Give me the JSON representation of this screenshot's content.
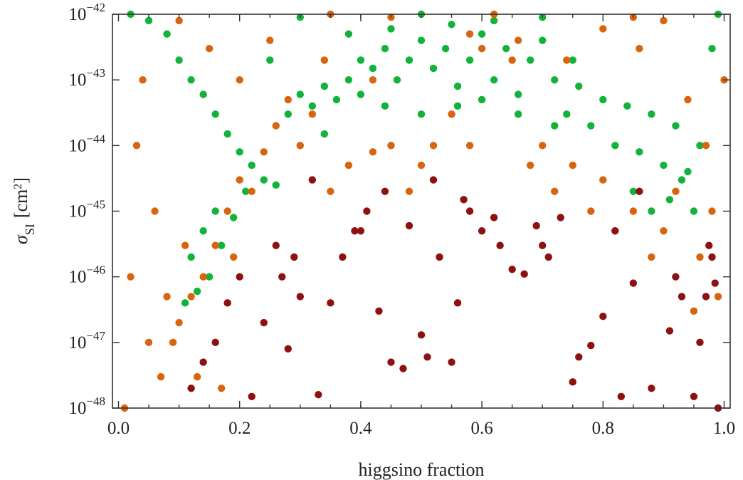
{
  "chart_data": {
    "type": "scatter",
    "title": "",
    "xlabel": "higgsino fraction",
    "ylabel_base": "σ",
    "ylabel_sub": "SI",
    "ylabel_unit": "[cm",
    "ylabel_unit_sup": "2",
    "ylabel_unit_close": "]",
    "x_scale": "linear",
    "y_scale": "log",
    "xlim": [
      -0.01,
      1.01
    ],
    "ylim": [
      1e-48,
      1e-42
    ],
    "grid": false,
    "legend": "none",
    "x_ticks": [
      "0.0",
      "0.2",
      "0.4",
      "0.6",
      "0.8",
      "1.0"
    ],
    "x_tick_values": [
      0.0,
      0.2,
      0.4,
      0.6,
      0.8,
      1.0
    ],
    "y_ticks": [
      {
        "base": "10",
        "exp": "−42",
        "value": 1e-42
      },
      {
        "base": "10",
        "exp": "−43",
        "value": 1e-43
      },
      {
        "base": "10",
        "exp": "−44",
        "value": 1e-44
      },
      {
        "base": "10",
        "exp": "−45",
        "value": 1e-45
      },
      {
        "base": "10",
        "exp": "−46",
        "value": 1e-46
      },
      {
        "base": "10",
        "exp": "−47",
        "value": 1e-47
      },
      {
        "base": "10",
        "exp": "−48",
        "value": 1e-48
      }
    ],
    "series": [
      {
        "color": "#11b33b",
        "points": [
          [
            0.02,
            1e-42
          ],
          [
            0.05,
            8e-43
          ],
          [
            0.08,
            5e-43
          ],
          [
            0.1,
            2e-43
          ],
          [
            0.12,
            1e-43
          ],
          [
            0.14,
            6e-44
          ],
          [
            0.16,
            3e-44
          ],
          [
            0.18,
            1.5e-44
          ],
          [
            0.2,
            8e-45
          ],
          [
            0.22,
            5e-45
          ],
          [
            0.24,
            3e-45
          ],
          [
            0.26,
            2.5e-45
          ],
          [
            0.28,
            3e-44
          ],
          [
            0.3,
            6e-44
          ],
          [
            0.32,
            4e-44
          ],
          [
            0.34,
            8e-44
          ],
          [
            0.36,
            5e-44
          ],
          [
            0.38,
            1e-43
          ],
          [
            0.4,
            2e-43
          ],
          [
            0.42,
            1.5e-43
          ],
          [
            0.44,
            3e-43
          ],
          [
            0.46,
            1e-43
          ],
          [
            0.48,
            2e-43
          ],
          [
            0.5,
            4e-43
          ],
          [
            0.52,
            1.5e-43
          ],
          [
            0.54,
            3e-43
          ],
          [
            0.56,
            8e-44
          ],
          [
            0.58,
            2e-43
          ],
          [
            0.6,
            5e-43
          ],
          [
            0.62,
            1e-43
          ],
          [
            0.64,
            3e-43
          ],
          [
            0.66,
            6e-44
          ],
          [
            0.68,
            2e-43
          ],
          [
            0.7,
            4e-43
          ],
          [
            0.72,
            1e-43
          ],
          [
            0.74,
            3e-44
          ],
          [
            0.76,
            8e-44
          ],
          [
            0.78,
            2e-44
          ],
          [
            0.8,
            5e-44
          ],
          [
            0.82,
            1e-44
          ],
          [
            0.84,
            4e-44
          ],
          [
            0.86,
            8e-45
          ],
          [
            0.88,
            3e-44
          ],
          [
            0.9,
            5e-45
          ],
          [
            0.92,
            2e-44
          ],
          [
            0.94,
            4e-45
          ],
          [
            0.96,
            1e-44
          ],
          [
            0.98,
            3e-43
          ],
          [
            0.99,
            1e-42
          ],
          [
            0.5,
            1e-42
          ],
          [
            0.3,
            9e-43
          ],
          [
            0.7,
            9e-43
          ],
          [
            0.45,
            6e-43
          ],
          [
            0.55,
            7e-43
          ],
          [
            0.62,
            8e-43
          ],
          [
            0.38,
            5e-43
          ],
          [
            0.25,
            2e-43
          ],
          [
            0.75,
            2e-43
          ],
          [
            0.15,
            1e-46
          ],
          [
            0.12,
            2e-46
          ],
          [
            0.13,
            6e-47
          ],
          [
            0.17,
            3e-46
          ],
          [
            0.19,
            8e-46
          ],
          [
            0.21,
            2e-45
          ],
          [
            0.14,
            5e-46
          ],
          [
            0.11,
            4e-47
          ],
          [
            0.16,
            1e-45
          ],
          [
            0.85,
            2e-45
          ],
          [
            0.88,
            1e-45
          ],
          [
            0.91,
            1.5e-45
          ],
          [
            0.93,
            3e-45
          ],
          [
            0.95,
            1e-45
          ],
          [
            0.4,
            6e-44
          ],
          [
            0.6,
            5e-44
          ],
          [
            0.5,
            3e-44
          ],
          [
            0.56,
            4e-44
          ],
          [
            0.44,
            4e-44
          ],
          [
            0.66,
            3e-44
          ],
          [
            0.34,
            1.5e-44
          ],
          [
            0.72,
            2e-44
          ]
        ]
      },
      {
        "color": "#d9640f",
        "points": [
          [
            0.01,
            1e-48
          ],
          [
            0.02,
            1e-46
          ],
          [
            0.03,
            1e-44
          ],
          [
            0.04,
            1e-43
          ],
          [
            0.05,
            1e-47
          ],
          [
            0.06,
            1e-45
          ],
          [
            0.07,
            3e-48
          ],
          [
            0.08,
            5e-47
          ],
          [
            0.1,
            2e-47
          ],
          [
            0.12,
            5e-47
          ],
          [
            0.14,
            1e-46
          ],
          [
            0.16,
            3e-46
          ],
          [
            0.18,
            1e-45
          ],
          [
            0.2,
            3e-45
          ],
          [
            0.22,
            2e-45
          ],
          [
            0.24,
            8e-45
          ],
          [
            0.26,
            2e-44
          ],
          [
            0.28,
            5e-44
          ],
          [
            0.3,
            1e-44
          ],
          [
            0.32,
            3e-44
          ],
          [
            0.35,
            2e-45
          ],
          [
            0.38,
            5e-45
          ],
          [
            0.42,
            8e-45
          ],
          [
            0.45,
            1e-44
          ],
          [
            0.48,
            2e-45
          ],
          [
            0.5,
            5e-45
          ],
          [
            0.52,
            1e-44
          ],
          [
            0.55,
            3e-44
          ],
          [
            0.58,
            1e-44
          ],
          [
            0.6,
            3e-43
          ],
          [
            0.62,
            1e-42
          ],
          [
            0.65,
            2e-43
          ],
          [
            0.68,
            5e-45
          ],
          [
            0.7,
            1e-44
          ],
          [
            0.72,
            2e-45
          ],
          [
            0.75,
            5e-45
          ],
          [
            0.78,
            1e-45
          ],
          [
            0.8,
            3e-45
          ],
          [
            0.82,
            5e-46
          ],
          [
            0.85,
            1e-45
          ],
          [
            0.88,
            2e-46
          ],
          [
            0.9,
            5e-46
          ],
          [
            0.92,
            2e-45
          ],
          [
            0.94,
            5e-44
          ],
          [
            0.95,
            3e-47
          ],
          [
            0.96,
            2e-46
          ],
          [
            0.97,
            1e-44
          ],
          [
            0.98,
            1e-45
          ],
          [
            0.99,
            5e-47
          ],
          [
            1.0,
            1e-43
          ],
          [
            0.1,
            8e-43
          ],
          [
            0.15,
            3e-43
          ],
          [
            0.2,
            1e-43
          ],
          [
            0.25,
            4e-43
          ],
          [
            0.34,
            2e-43
          ],
          [
            0.42,
            1e-43
          ],
          [
            0.58,
            5e-43
          ],
          [
            0.66,
            4e-43
          ],
          [
            0.74,
            2e-43
          ],
          [
            0.8,
            6e-43
          ],
          [
            0.86,
            3e-43
          ],
          [
            0.9,
            8e-43
          ],
          [
            0.35,
            1e-42
          ],
          [
            0.45,
            9e-43
          ],
          [
            0.85,
            9e-43
          ],
          [
            0.13,
            3e-48
          ],
          [
            0.17,
            2e-48
          ],
          [
            0.09,
            1e-47
          ],
          [
            0.11,
            3e-46
          ],
          [
            0.19,
            2e-46
          ]
        ]
      },
      {
        "color": "#8e1111",
        "points": [
          [
            0.12,
            2e-48
          ],
          [
            0.14,
            5e-48
          ],
          [
            0.16,
            1e-47
          ],
          [
            0.18,
            4e-47
          ],
          [
            0.2,
            1e-46
          ],
          [
            0.22,
            1.5e-48
          ],
          [
            0.24,
            2e-47
          ],
          [
            0.26,
            3e-46
          ],
          [
            0.28,
            8e-48
          ],
          [
            0.3,
            5e-47
          ],
          [
            0.32,
            3e-45
          ],
          [
            0.33,
            1.6e-48
          ],
          [
            0.35,
            4e-47
          ],
          [
            0.37,
            2e-46
          ],
          [
            0.39,
            5e-46
          ],
          [
            0.41,
            1e-45
          ],
          [
            0.43,
            3e-47
          ],
          [
            0.45,
            5e-48
          ],
          [
            0.47,
            4e-48
          ],
          [
            0.48,
            6e-46
          ],
          [
            0.5,
            1.3e-47
          ],
          [
            0.51,
            6e-48
          ],
          [
            0.53,
            2e-46
          ],
          [
            0.55,
            5e-48
          ],
          [
            0.56,
            4e-47
          ],
          [
            0.58,
            1e-45
          ],
          [
            0.6,
            5e-46
          ],
          [
            0.63,
            3e-46
          ],
          [
            0.65,
            1.3e-46
          ],
          [
            0.67,
            1.1e-46
          ],
          [
            0.69,
            6e-46
          ],
          [
            0.71,
            2e-46
          ],
          [
            0.73,
            8e-46
          ],
          [
            0.75,
            2.5e-48
          ],
          [
            0.76,
            6e-48
          ],
          [
            0.78,
            9e-48
          ],
          [
            0.8,
            2.5e-47
          ],
          [
            0.82,
            5e-46
          ],
          [
            0.83,
            1.5e-48
          ],
          [
            0.85,
            8e-47
          ],
          [
            0.88,
            2e-48
          ],
          [
            0.91,
            1.5e-47
          ],
          [
            0.93,
            5e-47
          ],
          [
            0.95,
            1.5e-48
          ],
          [
            0.96,
            1e-47
          ],
          [
            0.97,
            5e-47
          ],
          [
            0.98,
            2e-46
          ],
          [
            0.99,
            1e-48
          ],
          [
            0.985,
            8e-47
          ],
          [
            0.975,
            3e-46
          ],
          [
            0.27,
            1e-46
          ],
          [
            0.29,
            2e-46
          ],
          [
            0.4,
            5e-46
          ],
          [
            0.44,
            2e-45
          ],
          [
            0.52,
            3e-45
          ],
          [
            0.57,
            1.5e-45
          ],
          [
            0.62,
            8e-46
          ],
          [
            0.7,
            3e-46
          ],
          [
            0.86,
            2e-45
          ],
          [
            0.92,
            1e-46
          ]
        ]
      }
    ]
  }
}
